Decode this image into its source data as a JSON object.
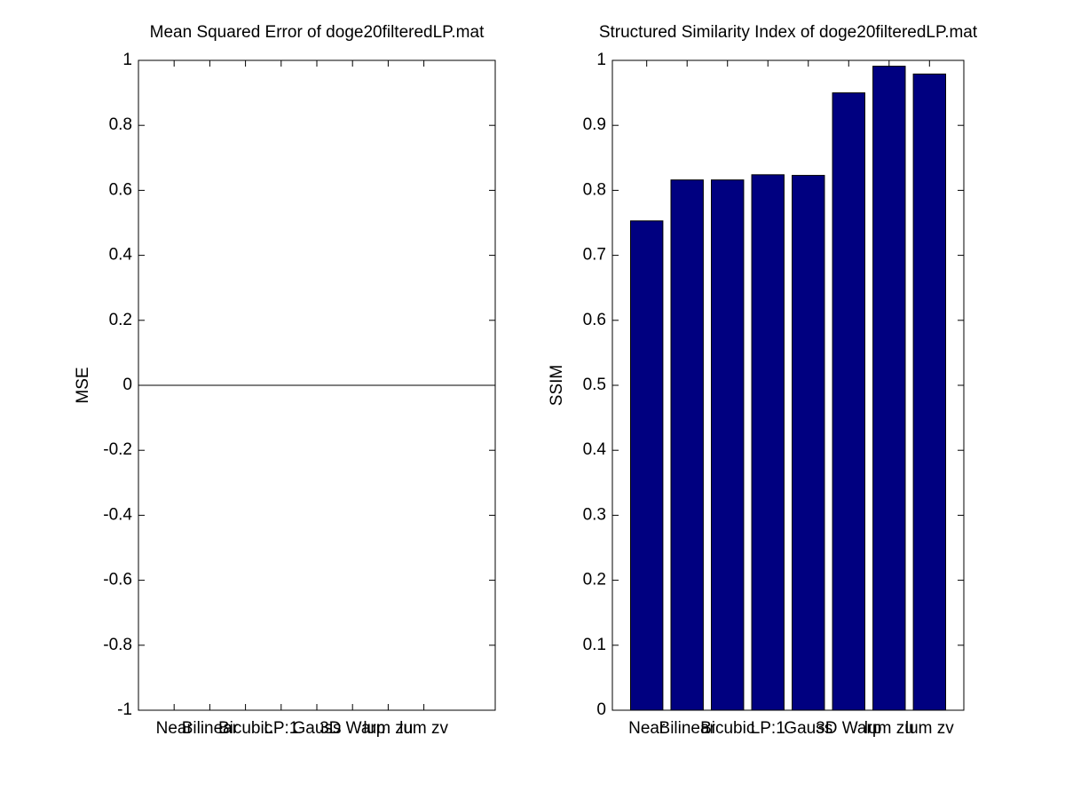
{
  "chart_data": [
    {
      "type": "bar",
      "title": "Mean Squared Error of doge20filteredLP.mat",
      "y_label": "MSE",
      "categories": [
        "Near",
        "Bilinear",
        "Bicubic",
        "LP:1",
        "Gauss",
        "3D Warp",
        "lum zu",
        "lum zv"
      ],
      "values": [
        0,
        0,
        0,
        0,
        0,
        0,
        0,
        0
      ],
      "color": "#000080",
      "xlim": [
        0,
        10
      ],
      "ylim": [
        -1,
        1
      ],
      "yticks": [
        -1,
        -0.8,
        -0.6,
        -0.4,
        -0.2,
        0,
        0.2,
        0.4,
        0.6,
        0.8,
        1
      ]
    },
    {
      "type": "bar",
      "title": "Structured Similarity Index of doge20filteredLP.mat",
      "y_label": "SSIM",
      "categories": [
        "Near",
        "Bilinear",
        "Bicubic",
        "LP:1",
        "Gauss",
        "3D Warp",
        "lum zu",
        "lum zv"
      ],
      "values": [
        0.753,
        0.816,
        0.816,
        0.824,
        0.823,
        0.95,
        0.991,
        0.979
      ],
      "color": "#000080",
      "xlim": [
        0.15,
        8.85
      ],
      "ylim": [
        0,
        1
      ],
      "yticks": [
        0,
        0.1,
        0.2,
        0.3,
        0.4,
        0.5,
        0.6,
        0.7,
        0.8,
        0.9,
        1
      ]
    }
  ]
}
